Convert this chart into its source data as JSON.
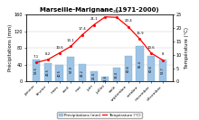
{
  "title": "Marseille-Marignane (1971-2000)",
  "months": [
    "janvier",
    "février",
    "mars",
    "avril",
    "mai",
    "juin",
    "juillet",
    "août",
    "septembre",
    "octobre",
    "novembre",
    "décembre"
  ],
  "precipitation": [
    53.5,
    43.5,
    40.5,
    57.9,
    41.2,
    25.4,
    12.6,
    33.4,
    60.6,
    85.4,
    60.6,
    52.7
  ],
  "temperature": [
    7.1,
    8.2,
    10.6,
    13.1,
    17.4,
    21.1,
    24.1,
    23.9,
    20.4,
    15.9,
    10.6,
    8.0
  ],
  "temp_labels": [
    "7.1",
    "8.2",
    "10.6",
    "13.1",
    "17.4",
    "21.1",
    "24.1",
    "23.9",
    "20.4",
    "15.9",
    "10.6",
    "8"
  ],
  "precip_labels": [
    "53.5",
    "43.5",
    "40.5",
    "57.9",
    "41.2",
    "25.4",
    "12.6",
    "33.4",
    "60.6",
    "85.4",
    "60.6",
    "52.7"
  ],
  "bar_color": "#9DC3E6",
  "bar_edge_color": "#7AAED0",
  "line_color": "#FF0000",
  "ylabel_left": "Précipitations (mm)",
  "ylabel_right": "Température (°C)",
  "ylim_left": [
    0,
    160
  ],
  "ylim_right": [
    0,
    25
  ],
  "yticks_left": [
    0,
    40,
    80,
    120,
    160
  ],
  "yticks_right": [
    0,
    5,
    10,
    15,
    20,
    25
  ],
  "legend_precip": "Précipitations (mm)",
  "legend_temp": "Température (°C)",
  "bg_color": "#FFFFFF",
  "grid_color": "#D0D0D0"
}
